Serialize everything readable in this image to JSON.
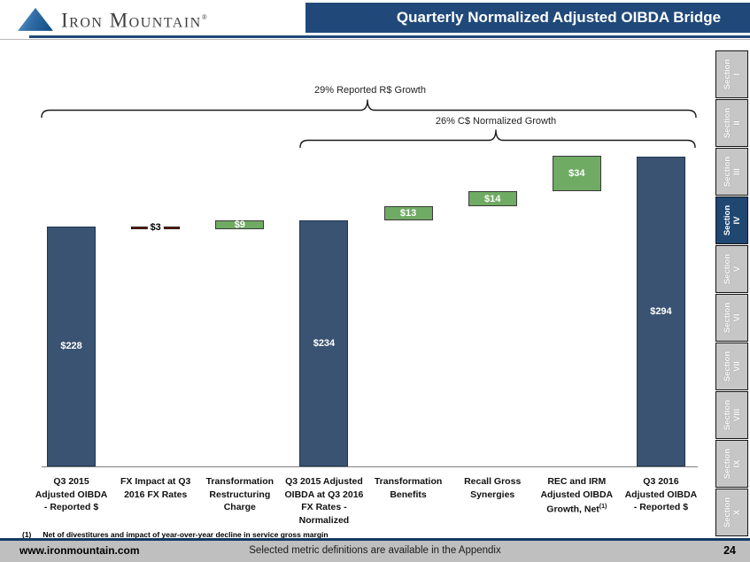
{
  "header": {
    "logo_text": "Iron Mountain",
    "logo_reg": "®",
    "title": "Quarterly Normalized Adjusted OIBDA Bridge"
  },
  "chart_data": {
    "type": "bar",
    "subtype": "waterfall",
    "title": "Quarterly Normalized Adjusted OIBDA Bridge",
    "annotations": [
      {
        "text": "29% Reported R$ Growth",
        "from_category": 0,
        "to_category": 7
      },
      {
        "text": "26% C$ Normalized Growth",
        "from_category": 3,
        "to_category": 7
      }
    ],
    "categories": [
      "Q3 2015 Adjusted OIBDA - Reported $",
      "FX Impact at Q3 2016 FX Rates",
      "Transformation Restructuring Charge",
      "Q3 2015 Adjusted OIBDA at Q3 2016 FX Rates - Normalized",
      "Transformation Benefits",
      "Recall Gross Synergies",
      "REC and IRM Adjusted OIBDA Growth, Net(1)",
      "Q3 2016 Adjusted OIBDA - Reported $"
    ],
    "items": [
      {
        "label_lines": [
          "Q3 2015",
          "Adjusted OIBDA",
          "- Reported $"
        ],
        "value": 228,
        "display": "$228",
        "kind": "total"
      },
      {
        "label_lines": [
          "FX Impact at Q3",
          "2016 FX Rates"
        ],
        "value": 3,
        "display": "$3",
        "kind": "decrease"
      },
      {
        "label_lines": [
          "Transformation",
          "Restructuring",
          "Charge"
        ],
        "value": 9,
        "display": "$9",
        "kind": "increase"
      },
      {
        "label_lines": [
          "Q3 2015 Adjusted",
          "OIBDA at Q3 2016",
          "FX Rates -",
          "Normalized"
        ],
        "value": 234,
        "display": "$234",
        "kind": "total"
      },
      {
        "label_lines": [
          "Transformation",
          "Benefits"
        ],
        "value": 13,
        "display": "$13",
        "kind": "increase"
      },
      {
        "label_lines": [
          "Recall Gross",
          "Synergies"
        ],
        "value": 14,
        "display": "$14",
        "kind": "increase"
      },
      {
        "label_lines": [
          "REC and IRM",
          "Adjusted OIBDA",
          "Growth, Net"
        ],
        "label_sup": "(1)",
        "value": 34,
        "display": "$34",
        "kind": "increase"
      },
      {
        "label_lines": [
          "Q3 2016",
          "Adjusted OIBDA",
          "- Reported $"
        ],
        "value": 294,
        "display": "$294",
        "kind": "total"
      }
    ],
    "colors": {
      "total": "#3A5372",
      "increase": "#6FAB63",
      "decrease": "#8C1F12"
    },
    "border_colors": {
      "total": "#1E3650",
      "increase": "#3A3A3A",
      "decrease": "#141414"
    },
    "baseline_value": 0,
    "legend": false
  },
  "sidebar": {
    "items": [
      {
        "label": "Section",
        "numeral": "I",
        "active": false
      },
      {
        "label": "Section",
        "numeral": "II",
        "active": false
      },
      {
        "label": "Section",
        "numeral": "III",
        "active": false
      },
      {
        "label": "Section",
        "numeral": "IV",
        "active": true
      },
      {
        "label": "Section",
        "numeral": "V",
        "active": false
      },
      {
        "label": "Section",
        "numeral": "VI",
        "active": false
      },
      {
        "label": "Section",
        "numeral": "VII",
        "active": false
      },
      {
        "label": "Section",
        "numeral": "VIII",
        "active": false
      },
      {
        "label": "Section",
        "numeral": "IX",
        "active": false
      },
      {
        "label": "Section",
        "numeral": "X",
        "active": false
      }
    ]
  },
  "footnote": {
    "marker": "(1)",
    "text": "Net of divestitures and impact of year-over-year decline in service gross margin"
  },
  "footer": {
    "site": "www.ironmountain.com",
    "center": "Selected metric definitions are available in the Appendix",
    "page": "24"
  }
}
